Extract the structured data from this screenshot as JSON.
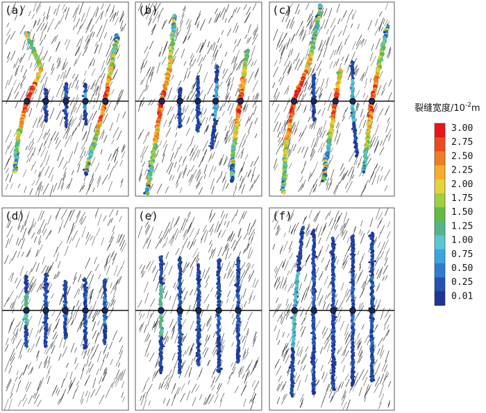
{
  "panels": [
    {
      "label": "(a)",
      "stage": 0
    },
    {
      "label": "(b)",
      "stage": 1
    },
    {
      "label": "(c)",
      "stage": 2
    },
    {
      "label": "(d)",
      "stage": 3
    },
    {
      "label": "(e)",
      "stage": 4
    },
    {
      "label": "(f)",
      "stage": 5
    }
  ],
  "legend": {
    "title_main": "裂缝宽度/10",
    "title_exp": "-2",
    "title_unit": "m",
    "ticks": [
      "3.00",
      "2.75",
      "2.50",
      "2.25",
      "2.00",
      "1.75",
      "1.50",
      "1.25",
      "1.00",
      "0.75",
      "0.50",
      "0.25",
      "0.01"
    ],
    "colors": [
      "#e8161a",
      "#ef4a1f",
      "#f07d22",
      "#f5ad2a",
      "#e6d23a",
      "#9fd042",
      "#5fbd46",
      "#54b48a",
      "#5cc6d2",
      "#3aa6e0",
      "#2f7bd0",
      "#2452b0",
      "#1f3596"
    ]
  },
  "colors": {
    "background_line": "#111111",
    "wellbore": "#111111",
    "frame": "#555555"
  }
}
